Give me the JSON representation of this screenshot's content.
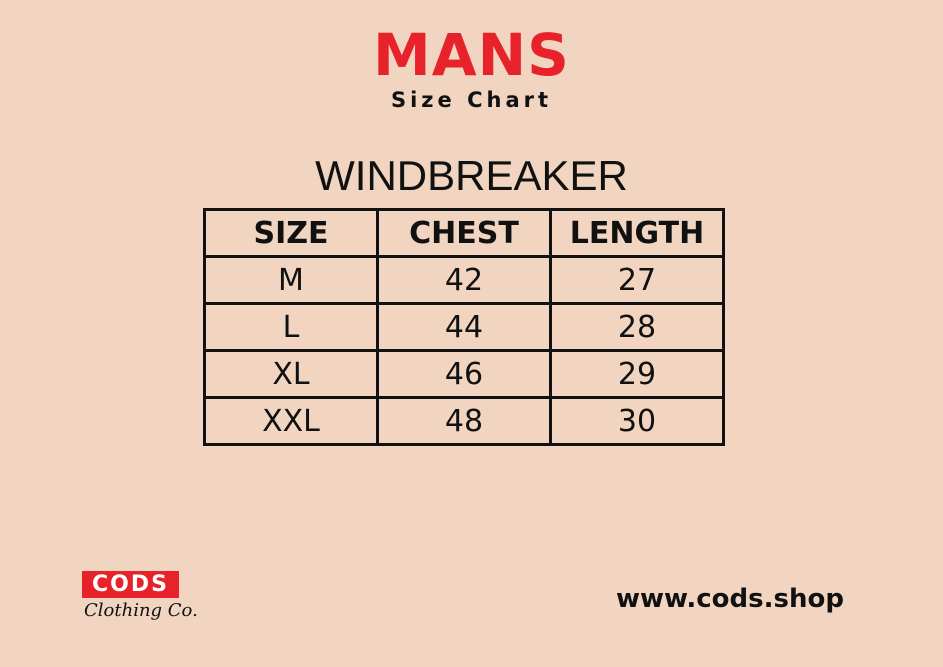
{
  "header": {
    "title": "MANS",
    "subtitle": "Size Chart"
  },
  "product": "WINDBREAKER",
  "table": {
    "headers": [
      "SIZE",
      "CHEST",
      "LENGTH"
    ],
    "rows": [
      [
        "M",
        "42",
        "27"
      ],
      [
        "L",
        "44",
        "28"
      ],
      [
        "XL",
        "46",
        "29"
      ],
      [
        "XXL",
        "48",
        "30"
      ]
    ]
  },
  "brand": {
    "logo": "CODS",
    "tagline": "Clothing Co.",
    "url": "www.cods.shop"
  },
  "colors": {
    "accent": "#e7222b",
    "background": "#f1d5c0"
  }
}
